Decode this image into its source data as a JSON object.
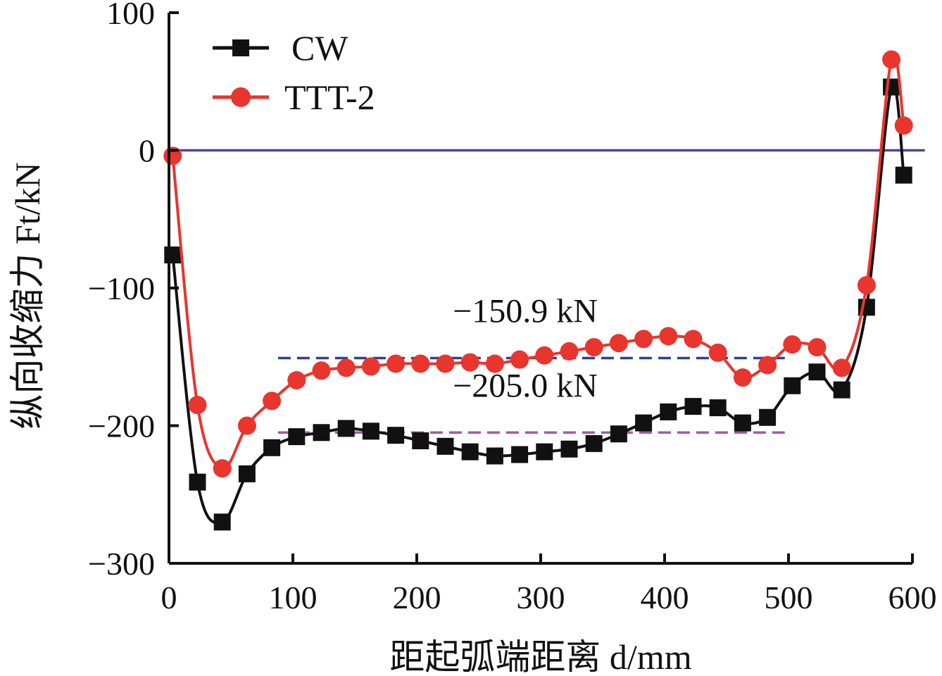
{
  "chart_data": {
    "type": "line",
    "xlabel": "距起弧端距离 d/mm",
    "ylabel": "纵向收缩力 Ft/kN",
    "xlim": [
      0,
      600
    ],
    "ylim": [
      -300,
      100
    ],
    "xticks": [
      0,
      100,
      200,
      300,
      400,
      500,
      600
    ],
    "yticks": [
      100,
      0,
      -100,
      -200,
      -300
    ],
    "xtick_labels": [
      "0",
      "100",
      "200",
      "300",
      "400",
      "500",
      "600"
    ],
    "ytick_labels": [
      "100",
      "0",
      "−100",
      "−200",
      "−300"
    ],
    "legend_position": "top-left",
    "series": [
      {
        "name": "CW",
        "color": "#111111",
        "marker": "square",
        "x": [
          3,
          23,
          43,
          63,
          83,
          103,
          123,
          143,
          163,
          183,
          203,
          223,
          243,
          263,
          283,
          303,
          323,
          343,
          363,
          383,
          403,
          423,
          443,
          463,
          483,
          503,
          523,
          543,
          563,
          583,
          593
        ],
        "y": [
          -76,
          -241,
          -270,
          -235,
          -216,
          -208,
          -205,
          -202,
          -204,
          -207,
          -211,
          -215,
          -219,
          -222,
          -221,
          -219,
          -217,
          -213,
          -206,
          -198,
          -190,
          -186,
          -187,
          -198,
          -194,
          -171,
          -161,
          -174,
          -114,
          46,
          -18
        ]
      },
      {
        "name": "TTT-2",
        "color": "#e8352e",
        "marker": "circle",
        "x": [
          3,
          23,
          43,
          63,
          83,
          103,
          123,
          143,
          163,
          183,
          203,
          223,
          243,
          263,
          283,
          303,
          323,
          343,
          363,
          383,
          403,
          423,
          443,
          463,
          483,
          503,
          523,
          543,
          563,
          583,
          593
        ],
        "y": [
          -4,
          -185,
          -231,
          -200,
          -182,
          -167,
          -160,
          -158,
          -157,
          -155,
          -155,
          -155,
          -154,
          -155,
          -152,
          -149,
          -146,
          -143,
          -140,
          -137,
          -135,
          -137,
          -147,
          -165,
          -156,
          -141,
          -143,
          -158,
          -98,
          66,
          18
        ]
      }
    ],
    "reference_lines": [
      {
        "y": 0,
        "x_range": [
          0,
          610
        ],
        "color": "#5a3ea0",
        "style": "solid"
      },
      {
        "y": -150.9,
        "x_range": [
          88,
          497
        ],
        "color": "#2e3f99",
        "style": "dashed",
        "label": "−150.9 kN"
      },
      {
        "y": -205.0,
        "x_range": [
          88,
          497
        ],
        "color": "#a55aa8",
        "style": "dashed",
        "label": "−205.0 kN"
      }
    ]
  }
}
